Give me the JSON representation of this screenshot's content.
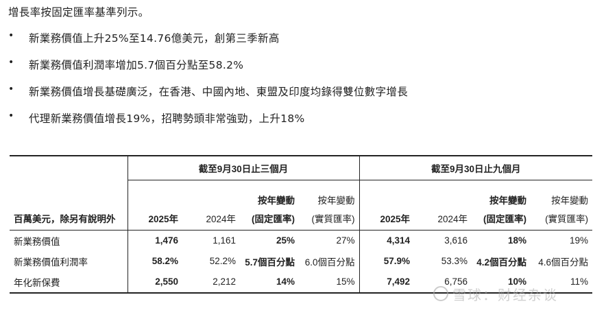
{
  "intro": "增長率按固定匯率基準列示。",
  "bullet_symbol": "•",
  "bullets": [
    "新業務價值上升25%至14.76億美元，創第三季新高",
    "新業務價值利潤率增加5.7個百分點至58.2%",
    "新業務價值增長基礎廣泛，在香港、中國內地、東盟及印度均錄得雙位數字增長",
    "代理新業務價值增長19%，招聘勢頭非常強勁，上升18%"
  ],
  "table": {
    "unit_label": "百萬美元，除另有說明外",
    "periods": [
      "截至9月30日止三個月",
      "截至9月30日止九個月"
    ],
    "columns": [
      {
        "line1": "",
        "line2": "2025年"
      },
      {
        "line1": "",
        "line2": "2024年"
      },
      {
        "line1": "按年變動",
        "line2": "(固定匯率)"
      },
      {
        "line1": "按年變動",
        "line2": "(實質匯率)"
      },
      {
        "line1": "",
        "line2": "2025年"
      },
      {
        "line1": "",
        "line2": "2024年"
      },
      {
        "line1": "按年變動",
        "line2": "(固定匯率)"
      },
      {
        "line1": "按年變動",
        "line2": "(實質匯率)"
      }
    ],
    "rows": [
      {
        "label": "新業務價值",
        "values": [
          "1,476",
          "1,161",
          "25%",
          "27%",
          "4,314",
          "3,616",
          "18%",
          "19%"
        ]
      },
      {
        "label": "新業務價值利潤率",
        "values": [
          "58.2%",
          "52.2%",
          "5.7個百分點",
          "6.0個百分點",
          "57.9%",
          "53.3%",
          "4.2個百分點",
          "4.6個百分點"
        ]
      },
      {
        "label": "年化新保費",
        "values": [
          "2,550",
          "2,212",
          "14%",
          "15%",
          "7,492",
          "6,756",
          "10%",
          "11%"
        ]
      }
    ]
  },
  "watermark": "雪球：财经杂谈"
}
